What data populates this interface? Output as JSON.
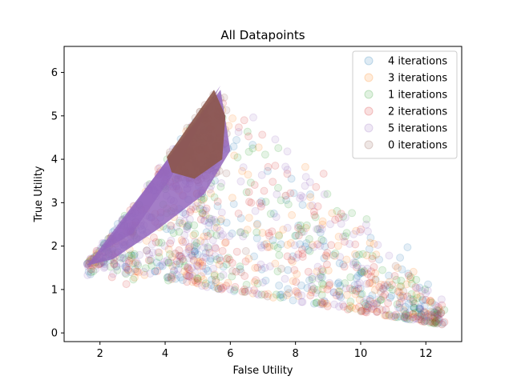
{
  "chart_data": {
    "type": "scatter",
    "title": "All Datapoints",
    "xlabel": "False Utility",
    "ylabel": "True Utility",
    "xlim": [
      0.9,
      13.1
    ],
    "ylim": [
      -0.2,
      6.6
    ],
    "xticks": [
      2,
      4,
      6,
      8,
      10,
      12
    ],
    "yticks": [
      0,
      1,
      2,
      3,
      4,
      5,
      6
    ],
    "grid": false,
    "legend_position": "top-right",
    "marker_alpha": 0.12,
    "series": [
      {
        "name": "4 iterations",
        "color": "#1f77b4"
      },
      {
        "name": "3 iterations",
        "color": "#ff7f0e"
      },
      {
        "name": "1 iterations",
        "color": "#2ca02c"
      },
      {
        "name": "2 iterations",
        "color": "#d62728"
      },
      {
        "name": "5 iterations",
        "color": "#9467bd"
      },
      {
        "name": "0 iterations",
        "color": "#8c564b"
      }
    ],
    "distribution": {
      "diagonal_edge": {
        "from": [
          1.6,
          1.55
        ],
        "to": [
          5.7,
          5.7
        ]
      },
      "lower_edge": {
        "from": [
          1.6,
          1.5
        ],
        "to": [
          12.5,
          0.2
        ]
      },
      "dense_core": {
        "x": [
          3.9,
          6.0
        ],
        "y": [
          3.4,
          5.7
        ]
      }
    }
  }
}
